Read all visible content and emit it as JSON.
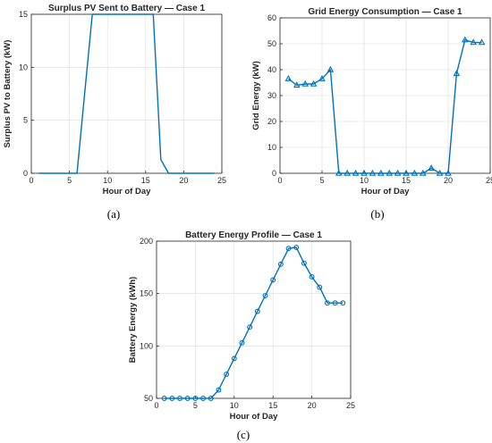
{
  "colors": {
    "series": "#0072BD",
    "axis": "#262626",
    "grid": "#dcdcdc"
  },
  "chart_data": [
    {
      "type": "line",
      "title": "Surplus PV Sent to Battery — Case 1",
      "xlabel": "Hour of Day",
      "ylabel": "Surplus PV to Battery (kW)",
      "xlim": [
        0,
        25
      ],
      "ylim": [
        0,
        15
      ],
      "xticks": [
        0,
        5,
        10,
        15,
        20,
        25
      ],
      "yticks": [
        0,
        5,
        10,
        15
      ],
      "grid": true,
      "marker": "none",
      "caption": "(a)",
      "x": [
        1,
        2,
        3,
        4,
        5,
        6,
        7,
        8,
        9,
        10,
        11,
        12,
        13,
        14,
        15,
        16,
        17,
        18,
        19,
        20,
        21,
        22,
        23,
        24
      ],
      "y": [
        0,
        0,
        0,
        0,
        0,
        0,
        7.5,
        15,
        15,
        15,
        15,
        15,
        15,
        15,
        15,
        15,
        1.3,
        0,
        0,
        0,
        0,
        0,
        0,
        0
      ]
    },
    {
      "type": "line",
      "title": "Grid Energy Consumption — Case 1",
      "xlabel": "Hour of Day",
      "ylabel": "Grid Energy (kW)",
      "xlim": [
        0,
        25
      ],
      "ylim": [
        0,
        60
      ],
      "xticks": [
        0,
        5,
        10,
        15,
        20,
        25
      ],
      "yticks": [
        0,
        10,
        20,
        30,
        40,
        50,
        60
      ],
      "grid": true,
      "marker": "triangle",
      "caption": "(b)",
      "x": [
        1,
        2,
        3,
        4,
        5,
        6,
        7,
        8,
        9,
        10,
        11,
        12,
        13,
        14,
        15,
        16,
        17,
        18,
        19,
        20,
        21,
        22,
        23,
        24
      ],
      "y": [
        36.5,
        34,
        34.5,
        34.5,
        36.5,
        40,
        0,
        0,
        0,
        0,
        0,
        0,
        0,
        0,
        0,
        0,
        0,
        2,
        0,
        0,
        38.5,
        51.5,
        50.5,
        50.5
      ]
    },
    {
      "type": "line",
      "title": "Battery Energy Profile — Case 1",
      "xlabel": "Hour of Day",
      "ylabel": "Battery Energy (kWh)",
      "xlim": [
        0,
        25
      ],
      "ylim": [
        50,
        200
      ],
      "xticks": [
        0,
        5,
        10,
        15,
        20,
        25
      ],
      "yticks": [
        50,
        100,
        150,
        200
      ],
      "grid": true,
      "marker": "circle",
      "caption": "(c)",
      "x": [
        1,
        2,
        3,
        4,
        5,
        6,
        7,
        8,
        9,
        10,
        11,
        12,
        13,
        14,
        15,
        16,
        17,
        18,
        19,
        20,
        21,
        22,
        23,
        24
      ],
      "y": [
        50,
        50,
        50,
        50,
        50,
        50,
        50,
        58,
        73,
        88,
        103,
        118,
        133,
        148,
        163,
        178,
        193,
        194,
        179,
        166,
        156,
        141,
        141,
        141
      ]
    }
  ]
}
